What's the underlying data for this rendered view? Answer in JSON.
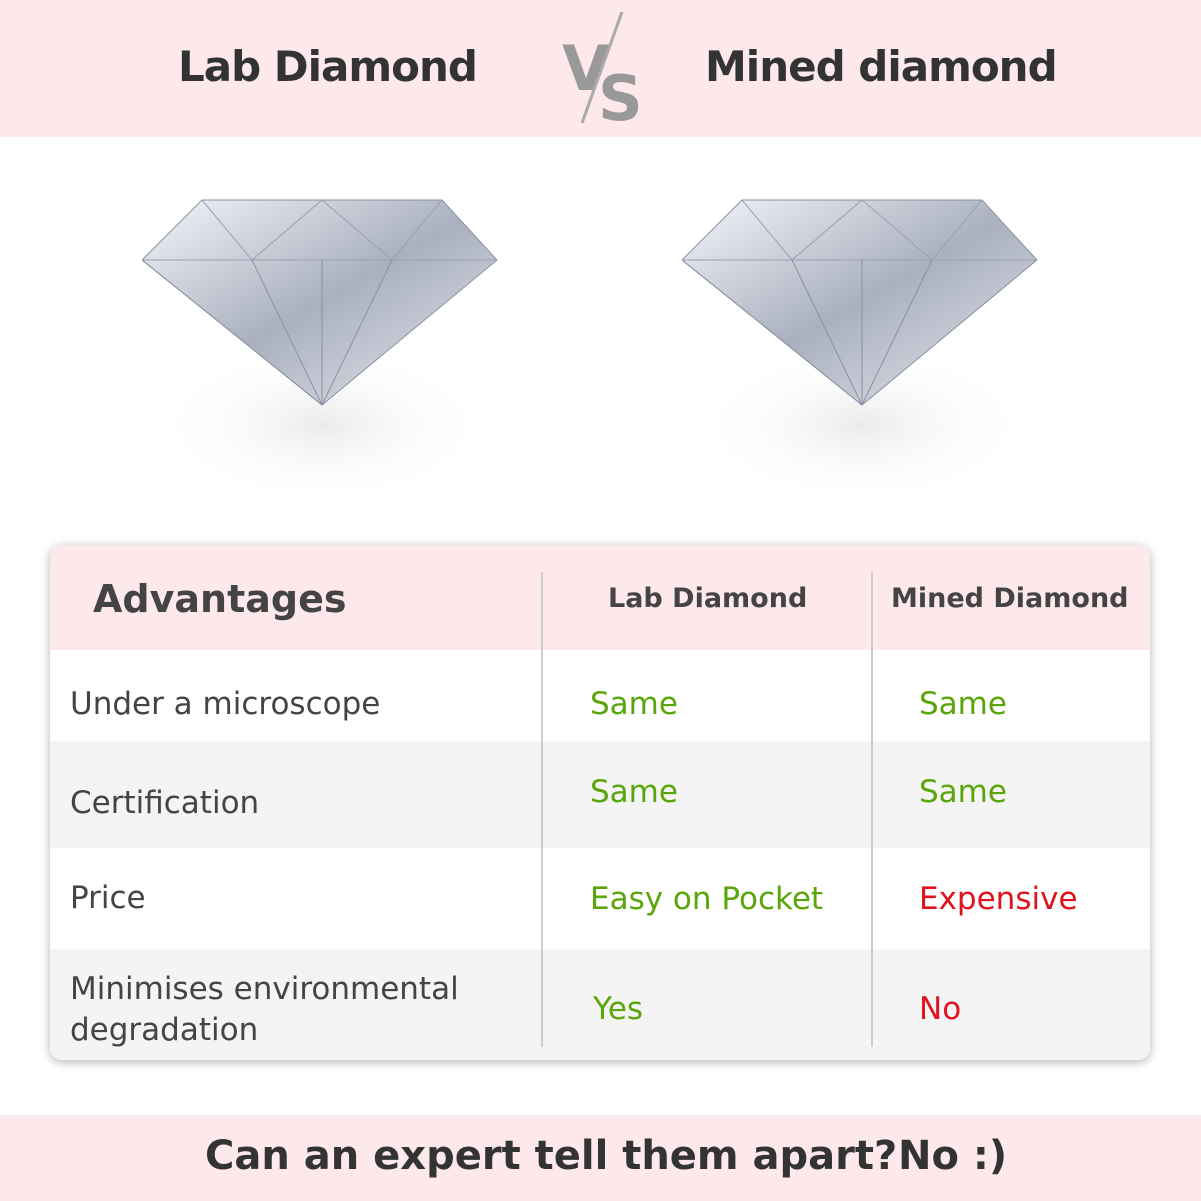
{
  "header": {
    "left_title": "Lab Diamond",
    "vs_label": "VS",
    "right_title": "Mined diamond"
  },
  "table": {
    "headers": [
      "Advantages",
      "Lab Diamond",
      "Mined Diamond"
    ],
    "rows": [
      {
        "label": "Under a microscope",
        "lab": "Same",
        "mined": "Same",
        "lab_status": "good",
        "mined_status": "good"
      },
      {
        "label": "Certification",
        "lab": "Same",
        "mined": "Same",
        "lab_status": "good",
        "mined_status": "good"
      },
      {
        "label": "Price",
        "lab": "Easy on Pocket",
        "mined": "Expensive",
        "lab_status": "good",
        "mined_status": "bad"
      },
      {
        "label": "Minimises environmental degradation",
        "lab": "Yes",
        "mined": "No",
        "lab_status": "good",
        "mined_status": "bad"
      }
    ]
  },
  "footer": {
    "question": "Can an expert tell them apart?",
    "answer": "No :)"
  },
  "colors": {
    "band": "#fde9ec",
    "good": "#5aa60a",
    "bad": "#e0121e",
    "text": "#444444"
  }
}
